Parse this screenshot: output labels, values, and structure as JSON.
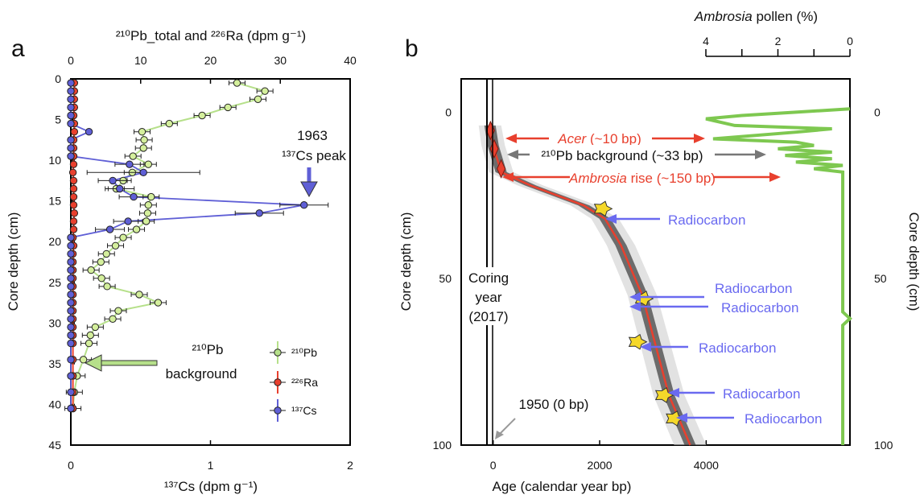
{
  "chart_data": [
    {
      "panel_label": "a",
      "type": "scatter",
      "top_axis_label": "²¹⁰Pb_total and ²²⁶Ra (dpm g⁻¹)",
      "top_ticks": [
        0,
        10,
        20,
        30,
        40
      ],
      "top_range": [
        0,
        40
      ],
      "bottom_axis_label": "¹³⁷Cs (dpm g⁻¹)",
      "bottom_ticks": [
        0,
        1,
        2
      ],
      "bottom_range": [
        0,
        2
      ],
      "ylabel": "Core depth (cm)",
      "y_ticks": [
        0,
        5,
        10,
        15,
        20,
        25,
        30,
        35,
        40,
        45
      ],
      "y_range": [
        0,
        45
      ],
      "legend": [
        {
          "name": "²¹⁰Pb",
          "color": "#b6e08a"
        },
        {
          "name": "²²⁶Ra",
          "color": "#e8402e"
        },
        {
          "name": "¹³⁷Cs",
          "color": "#5f5fd6"
        }
      ],
      "annotations": [
        {
          "text_line1": "1963",
          "text_line2": "¹³⁷Cs peak",
          "color": "#5f5fd6"
        },
        {
          "text_line1": "²¹⁰Pb",
          "text_line2": "background",
          "color": "#b6e08a"
        }
      ],
      "series": [
        {
          "name": "²¹⁰Pb",
          "axis": "top",
          "depth": [
            0.5,
            1.5,
            2.5,
            3.5,
            4.5,
            5.5,
            6.5,
            7.5,
            8.5,
            9.5,
            10.5,
            11.5,
            12.5,
            13.5,
            14.5,
            15.5,
            16.5,
            17.5,
            18.5,
            19.5,
            20.5,
            21.5,
            22.5,
            23.5,
            24.5,
            25.5,
            26.5,
            27.5,
            28.5,
            29.5,
            30.5,
            31.5,
            32.5,
            34.5,
            36.5,
            38.5,
            40.5
          ],
          "values": [
            23.8,
            27.8,
            26.8,
            22.5,
            18.8,
            14.1,
            10.2,
            10.5,
            10.4,
            8.9,
            11.1,
            8.8,
            7.5,
            6.5,
            11.5,
            11.1,
            11.0,
            10.8,
            9.4,
            7.5,
            6.4,
            5.1,
            4.3,
            2.9,
            4.4,
            5.2,
            9.8,
            12.5,
            6.8,
            6.0,
            3.5,
            2.8,
            2.6,
            1.8,
            0.9,
            0.5,
            0.3
          ]
        },
        {
          "name": "²²⁶Ra",
          "axis": "top",
          "depth": [
            0.5,
            1.5,
            2.5,
            3.5,
            4.5,
            5.5,
            6.5,
            7.5,
            8.5,
            9.5,
            10.5,
            11.5,
            12.5,
            13.5,
            14.5,
            15.5,
            16.5,
            17.5,
            18.5,
            19.5,
            20.5,
            21.5,
            22.5,
            23.5,
            24.5,
            25.5,
            26.5,
            27.5,
            28.5,
            29.5,
            30.5,
            31.5,
            32.5,
            34.5,
            36.5,
            38.5,
            40.5
          ],
          "values": [
            0.5,
            0.5,
            0.5,
            0.5,
            0.4,
            0.5,
            0.5,
            0.4,
            0.4,
            0.4,
            0.4,
            0.3,
            0.4,
            0.4,
            0.4,
            0.4,
            0.5,
            0.4,
            0.4,
            0.3,
            0.4,
            0.3,
            0.3,
            0.3,
            0.3,
            0.3,
            0.3,
            0.3,
            0.3,
            0.3,
            0.3,
            0.3,
            0.3,
            0.3,
            0.3,
            0.3,
            0.3
          ]
        },
        {
          "name": "¹³⁷Cs",
          "axis": "bottom",
          "depth": [
            0.5,
            1.5,
            2.5,
            3.5,
            4.5,
            5.5,
            6.5,
            7.5,
            8.5,
            9.5,
            10.5,
            11.5,
            12.5,
            13.5,
            14.5,
            15.5,
            16.5,
            17.5,
            18.5,
            19.5,
            20.5,
            21.5,
            22.5,
            23.5,
            24.5,
            25.5,
            26.5,
            27.5,
            28.5,
            29.5,
            30.5,
            31.5,
            32.5,
            34.5,
            36.5,
            38.5,
            40.5
          ],
          "values": [
            0,
            0,
            0,
            0,
            0,
            0,
            0.13,
            0,
            0,
            0,
            0.42,
            0.52,
            0.3,
            0.35,
            0.45,
            1.67,
            1.35,
            0.41,
            0.28,
            0,
            0,
            0,
            0,
            0,
            0,
            0,
            0,
            0,
            0,
            0,
            0,
            0,
            0,
            0,
            0,
            0,
            0
          ]
        }
      ]
    },
    {
      "panel_label": "b",
      "type": "line",
      "xlabel": "Age (calendar year bp)",
      "x_ticks": [
        0,
        2000,
        4000
      ],
      "x_range": [
        -600,
        6700
      ],
      "ylabel_left": "Core depth (cm)",
      "ylabel_right": "Core depth (cm)",
      "y_ticks": [
        0,
        50,
        100
      ],
      "y_range": [
        -10,
        100
      ],
      "top_axis_label_italic": "Ambrosia",
      "top_axis_label_rest": " pollen (%)",
      "top_ticks": [
        4,
        2,
        0
      ],
      "top_range": [
        4,
        0
      ],
      "annotations": {
        "coring_line1": "Coring",
        "coring_line2": "year",
        "coring_line3": "(2017)",
        "year1950": "1950 (0 bp)",
        "acer_italic": "Acer",
        "acer_rest": " (~10 bp)",
        "pb_background": "²¹⁰Pb background (~33 bp)",
        "ambrosia_italic": "Ambrosia",
        "ambrosia_rest": " rise (~150 bp)",
        "radiocarbon": "Radiocarbon"
      },
      "age_model": {
        "depth": [
          4,
          10,
          18,
          22,
          28,
          32,
          40,
          55,
          70,
          85,
          100
        ],
        "age": [
          -60,
          0,
          150,
          700,
          1700,
          2100,
          2400,
          2800,
          3050,
          3300,
          3700
        ]
      },
      "markers": [
        {
          "kind": "diamond",
          "depth": 5.5,
          "age": -50
        },
        {
          "kind": "diamond",
          "depth": 11,
          "age": 20
        },
        {
          "kind": "diamond",
          "depth": 17,
          "age": 150
        },
        {
          "kind": "radiocarbon",
          "depth": 29,
          "age": 2050
        },
        {
          "kind": "radiocarbon",
          "depth": 56,
          "age": 2820
        },
        {
          "kind": "radiocarbon",
          "depth": 69,
          "age": 2700
        },
        {
          "kind": "radiocarbon",
          "depth": 85,
          "age": 3200
        },
        {
          "kind": "radiocarbon",
          "depth": 92,
          "age": 3400
        }
      ],
      "ambrosia_pollen": {
        "depth": [
          -1,
          0,
          1,
          2,
          4,
          5,
          6,
          8,
          9,
          10,
          11,
          12,
          13,
          14,
          15,
          16,
          17,
          18,
          60,
          62,
          64,
          100
        ],
        "pct": [
          0,
          1.5,
          3.0,
          4.0,
          3.2,
          0.5,
          1.5,
          3.8,
          1.5,
          1.0,
          2.0,
          0.5,
          1.8,
          0.5,
          1.5,
          0.2,
          1.0,
          0.2,
          0.2,
          0.0,
          0.2,
          0.2
        ]
      }
    }
  ]
}
